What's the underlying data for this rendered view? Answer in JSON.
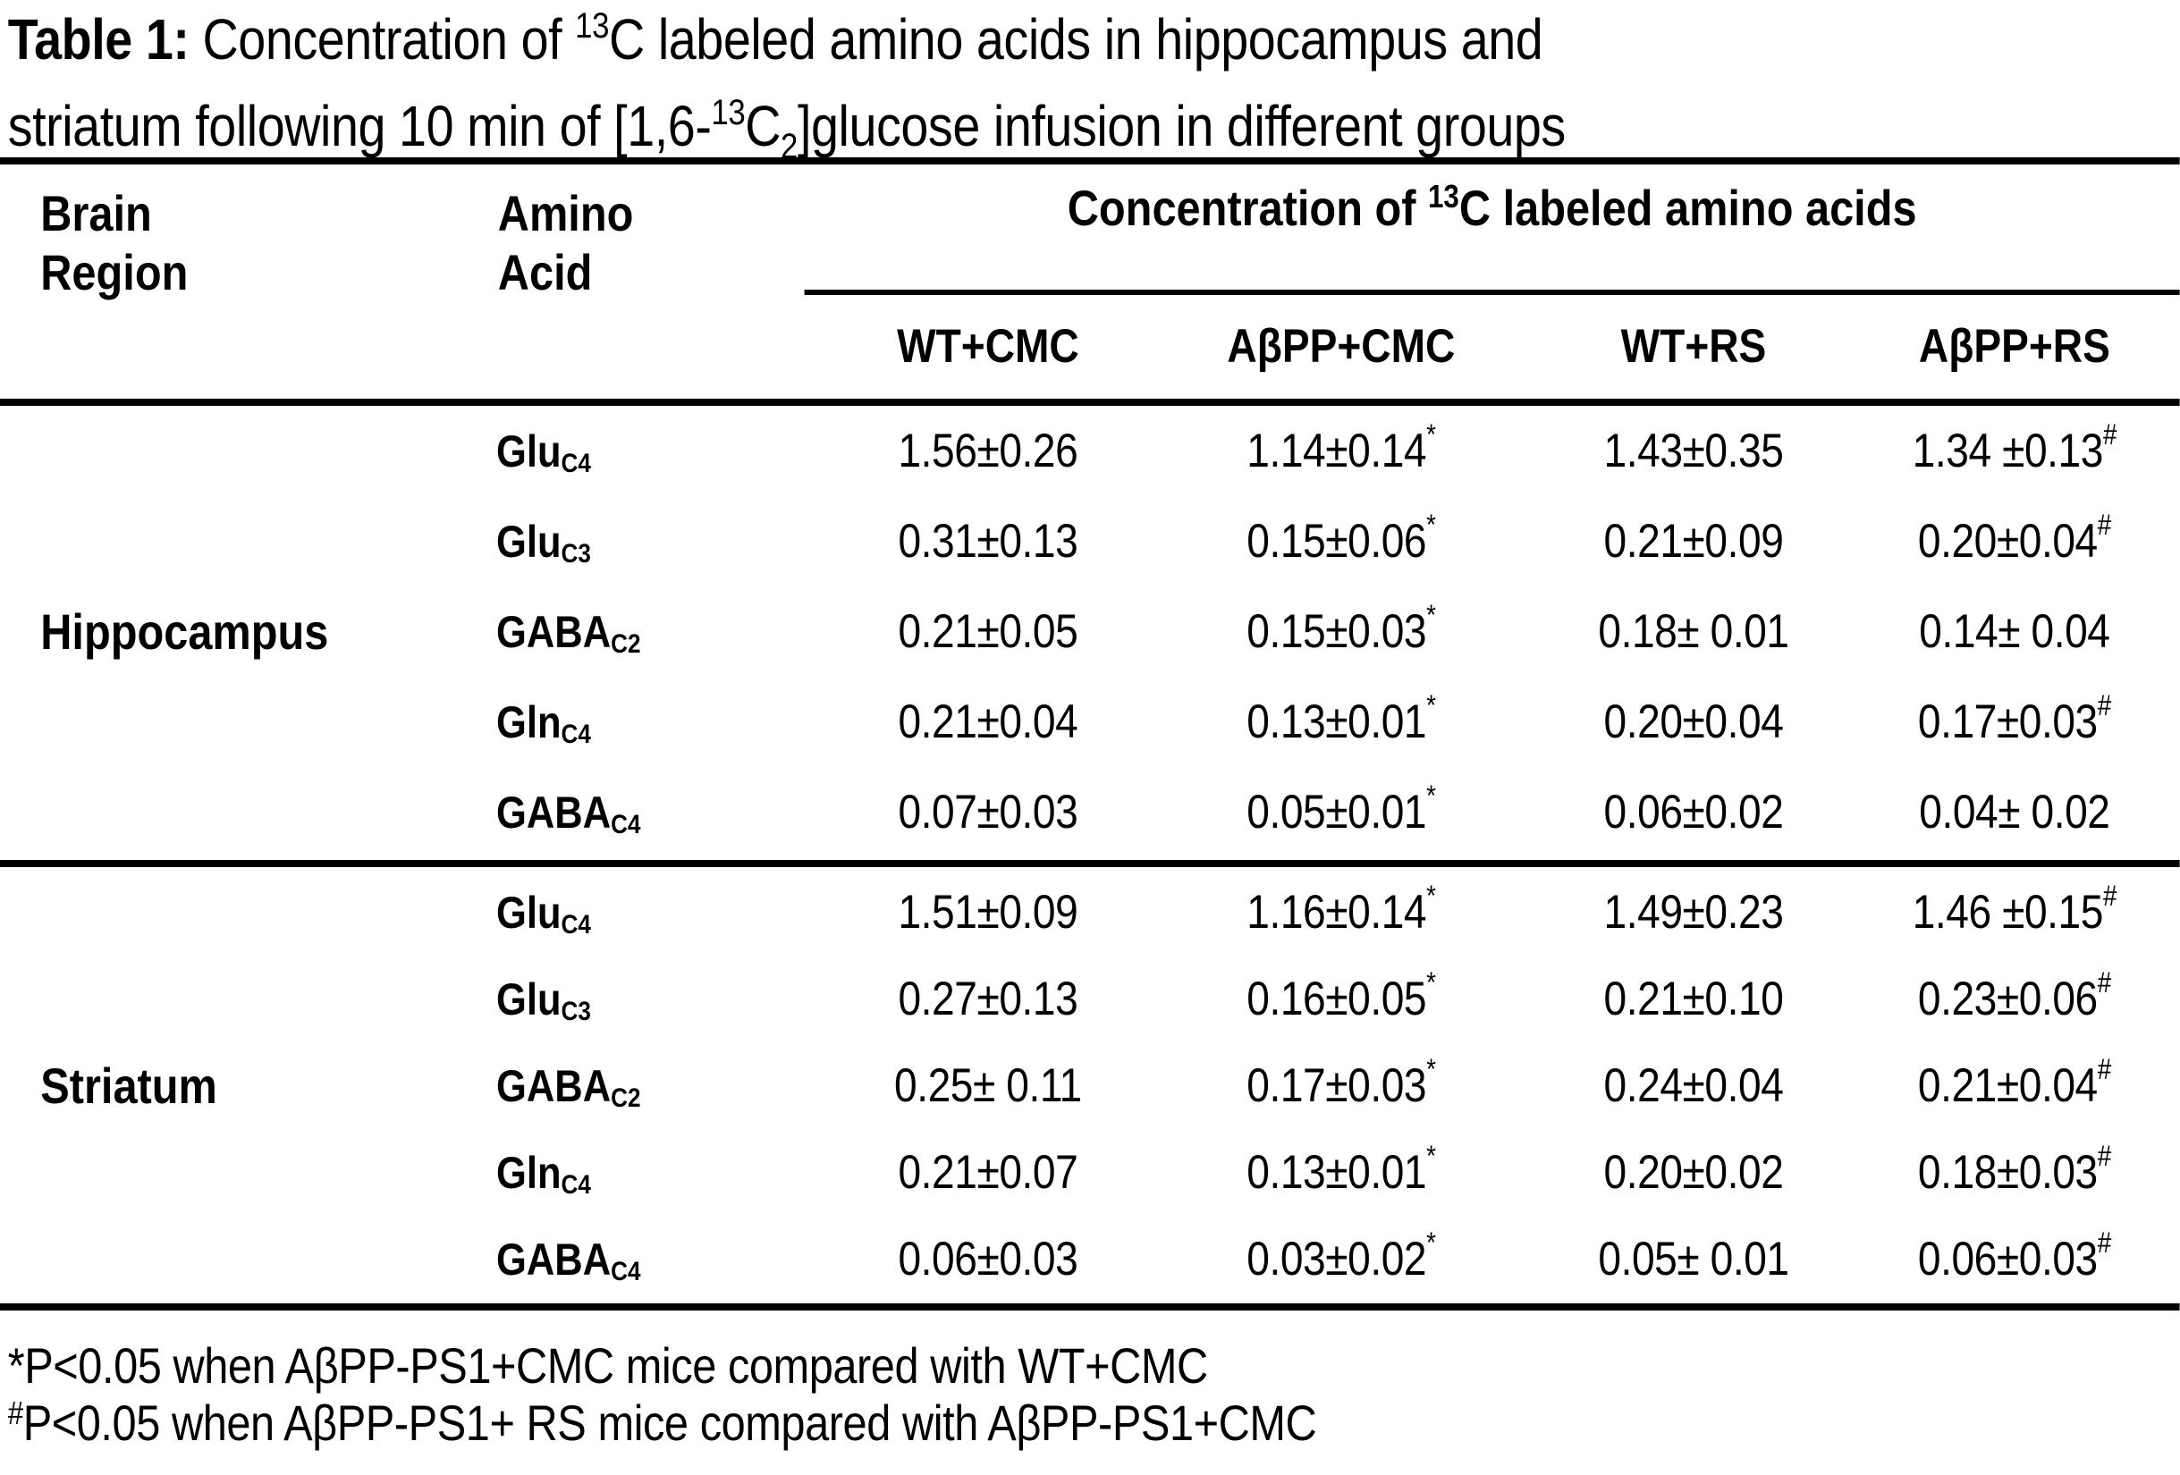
{
  "colors": {
    "text": "#000000",
    "background": "#ffffff"
  },
  "title": {
    "bold": "Table 1:",
    "line1_a": " Concentration of ",
    "line1_sup": "13",
    "line1_b": "C labeled amino acids in hippocampus and",
    "line2_a": "striatum following 10 min of  [1,6-",
    "line2_sup": "13",
    "line2_c": "C",
    "line2_sub": "2",
    "line2_b": "]glucose infusion in different groups"
  },
  "header": {
    "brain": "Brain Region",
    "amino": "Amino Acid",
    "conc_a": "Concentration of ",
    "conc_sup": "13",
    "conc_b": "C labeled amino acids",
    "columns": [
      "WT+CMC",
      "AβPP+CMC",
      "WT+RS",
      "AβPP+RS"
    ]
  },
  "sections": [
    {
      "region": "Hippocampus",
      "rows": [
        {
          "amino": "Glu",
          "sub": "C4",
          "values": [
            {
              "t": "1.56±0.26",
              "s": ""
            },
            {
              "t": "1.14±0.14",
              "s": "*"
            },
            {
              "t": "1.43±0.35",
              "s": ""
            },
            {
              "t": "1.34 ±0.13",
              "s": "#"
            }
          ]
        },
        {
          "amino": "Glu",
          "sub": "C3",
          "values": [
            {
              "t": "0.31±0.13",
              "s": ""
            },
            {
              "t": "0.15±0.06",
              "s": "*"
            },
            {
              "t": "0.21±0.09",
              "s": ""
            },
            {
              "t": "0.20±0.04",
              "s": "#"
            }
          ]
        },
        {
          "amino": "GABA",
          "sub": "C2",
          "values": [
            {
              "t": "0.21±0.05",
              "s": ""
            },
            {
              "t": "0.15±0.03",
              "s": "*"
            },
            {
              "t": "0.18± 0.01",
              "s": ""
            },
            {
              "t": "0.14± 0.04",
              "s": ""
            }
          ]
        },
        {
          "amino": "Gln",
          "sub": "C4",
          "values": [
            {
              "t": "0.21±0.04",
              "s": ""
            },
            {
              "t": "0.13±0.01",
              "s": "*"
            },
            {
              "t": "0.20±0.04",
              "s": ""
            },
            {
              "t": "0.17±0.03",
              "s": "#"
            }
          ]
        },
        {
          "amino": "GABA",
          "sub": "C4",
          "values": [
            {
              "t": "0.07±0.03",
              "s": ""
            },
            {
              "t": "0.05±0.01",
              "s": "*"
            },
            {
              "t": "0.06±0.02",
              "s": ""
            },
            {
              "t": "0.04± 0.02",
              "s": ""
            }
          ]
        }
      ]
    },
    {
      "region": "Striatum",
      "rows": [
        {
          "amino": "Glu",
          "sub": "C4",
          "values": [
            {
              "t": "1.51±0.09",
              "s": ""
            },
            {
              "t": "1.16±0.14",
              "s": "*"
            },
            {
              "t": "1.49±0.23",
              "s": ""
            },
            {
              "t": "1.46 ±0.15",
              "s": "#"
            }
          ]
        },
        {
          "amino": "Glu",
          "sub": "C3",
          "values": [
            {
              "t": "0.27±0.13",
              "s": ""
            },
            {
              "t": "0.16±0.05",
              "s": "*"
            },
            {
              "t": "0.21±0.10",
              "s": ""
            },
            {
              "t": "0.23±0.06",
              "s": "#"
            }
          ]
        },
        {
          "amino": "GABA",
          "sub": "C2",
          "values": [
            {
              "t": "0.25± 0.11",
              "s": ""
            },
            {
              "t": "0.17±0.03",
              "s": "*"
            },
            {
              "t": "0.24±0.04",
              "s": ""
            },
            {
              "t": "0.21±0.04",
              "s": "#"
            }
          ]
        },
        {
          "amino": "Gln",
          "sub": "C4",
          "values": [
            {
              "t": "0.21±0.07",
              "s": ""
            },
            {
              "t": "0.13±0.01",
              "s": "*"
            },
            {
              "t": "0.20±0.02",
              "s": ""
            },
            {
              "t": "0.18±0.03",
              "s": "#"
            }
          ]
        },
        {
          "amino": "GABA",
          "sub": "C4",
          "values": [
            {
              "t": "0.06±0.03",
              "s": ""
            },
            {
              "t": "0.03±0.02",
              "s": "*"
            },
            {
              "t": "0.05± 0.01",
              "s": ""
            },
            {
              "t": "0.06±0.03",
              "s": "#"
            }
          ]
        }
      ]
    }
  ],
  "footnotes": [
    {
      "marker": "*",
      "text": "P<0.05 when AβPP-PS1+CMC mice compared with WT+CMC"
    },
    {
      "marker": "#",
      "text": "P<0.05 when AβPP-PS1+ RS mice compared with AβPP-PS1+CMC"
    }
  ]
}
